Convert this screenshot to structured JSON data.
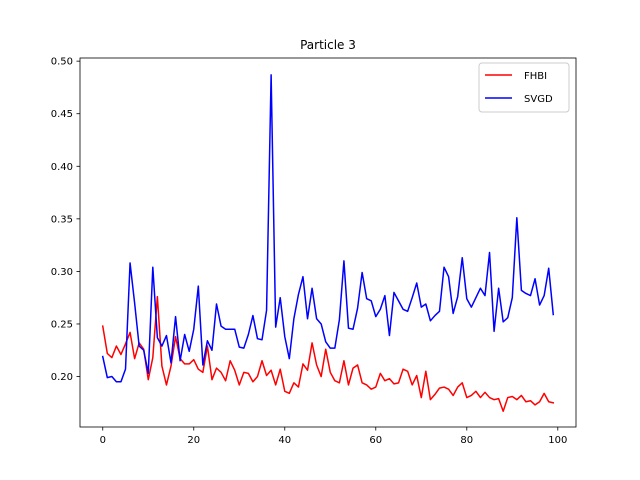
{
  "chart_data": {
    "type": "line",
    "title": "Particle 3",
    "xlabel": "",
    "ylabel": "",
    "xlim": [
      -5,
      104
    ],
    "ylim": [
      0.152,
      0.503
    ],
    "xticks": [
      0,
      20,
      40,
      60,
      80,
      100
    ],
    "yticks": [
      0.2,
      0.25,
      0.3,
      0.35,
      0.4,
      0.45,
      0.5
    ],
    "xtick_labels": [
      "0",
      "20",
      "40",
      "60",
      "80",
      "100"
    ],
    "ytick_labels": [
      "0.20",
      "0.25",
      "0.30",
      "0.35",
      "0.40",
      "0.45",
      "0.50"
    ],
    "grid": false,
    "legend_position": "top-right",
    "series": [
      {
        "name": "FHBI",
        "color": "#ff0000",
        "values": [
          0.248,
          0.222,
          0.218,
          0.229,
          0.221,
          0.231,
          0.242,
          0.217,
          0.232,
          0.226,
          0.197,
          0.218,
          0.276,
          0.21,
          0.192,
          0.21,
          0.238,
          0.217,
          0.212,
          0.212,
          0.216,
          0.207,
          0.204,
          0.229,
          0.197,
          0.208,
          0.204,
          0.196,
          0.215,
          0.206,
          0.192,
          0.204,
          0.203,
          0.195,
          0.2,
          0.215,
          0.201,
          0.206,
          0.192,
          0.207,
          0.186,
          0.184,
          0.194,
          0.19,
          0.212,
          0.206,
          0.232,
          0.211,
          0.2,
          0.226,
          0.204,
          0.196,
          0.194,
          0.215,
          0.192,
          0.208,
          0.211,
          0.194,
          0.192,
          0.188,
          0.19,
          0.203,
          0.196,
          0.198,
          0.193,
          0.194,
          0.207,
          0.205,
          0.192,
          0.201,
          0.18,
          0.205,
          0.178,
          0.183,
          0.189,
          0.19,
          0.188,
          0.182,
          0.19,
          0.194,
          0.18,
          0.182,
          0.186,
          0.18,
          0.185,
          0.18,
          0.178,
          0.179,
          0.167,
          0.18,
          0.181,
          0.178,
          0.182,
          0.176,
          0.177,
          0.173,
          0.176,
          0.184,
          0.176,
          0.175
        ]
      },
      {
        "name": "SVGD",
        "color": "#0000ff",
        "values": [
          0.219,
          0.199,
          0.2,
          0.195,
          0.195,
          0.207,
          0.308,
          0.27,
          0.229,
          0.225,
          0.203,
          0.304,
          0.237,
          0.229,
          0.239,
          0.213,
          0.257,
          0.215,
          0.24,
          0.224,
          0.245,
          0.286,
          0.211,
          0.234,
          0.225,
          0.269,
          0.248,
          0.245,
          0.245,
          0.245,
          0.228,
          0.227,
          0.24,
          0.258,
          0.236,
          0.235,
          0.263,
          0.487,
          0.247,
          0.275,
          0.238,
          0.217,
          0.255,
          0.278,
          0.295,
          0.255,
          0.284,
          0.255,
          0.25,
          0.233,
          0.227,
          0.227,
          0.254,
          0.31,
          0.246,
          0.245,
          0.265,
          0.299,
          0.274,
          0.272,
          0.257,
          0.264,
          0.277,
          0.239,
          0.28,
          0.272,
          0.264,
          0.262,
          0.275,
          0.289,
          0.266,
          0.269,
          0.253,
          0.258,
          0.262,
          0.304,
          0.295,
          0.26,
          0.276,
          0.313,
          0.274,
          0.266,
          0.275,
          0.284,
          0.277,
          0.318,
          0.243,
          0.284,
          0.252,
          0.256,
          0.275,
          0.351,
          0.282,
          0.279,
          0.277,
          0.293,
          0.268,
          0.277,
          0.303,
          0.259
        ]
      }
    ]
  }
}
